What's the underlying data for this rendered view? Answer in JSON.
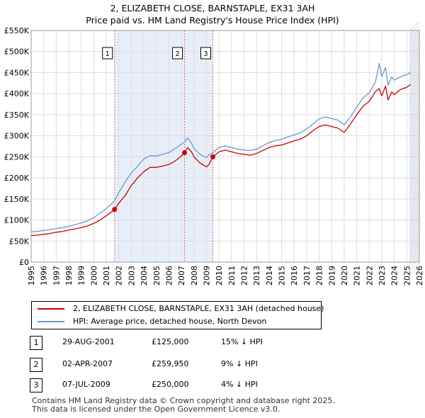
{
  "title": {
    "line1": "2, ELIZABETH CLOSE, BARNSTAPLE, EX31 3AH",
    "line2": "Price paid vs. HM Land Registry's House Price Index (HPI)"
  },
  "colors": {
    "price_line": "#cc0000",
    "hpi_line": "#6699cc",
    "shade": "#e8eef8",
    "grid": "#dddddd",
    "marker_line": "#e06666"
  },
  "legend": [
    {
      "label": "2, ELIZABETH CLOSE, BARNSTAPLE, EX31 3AH (detached house)",
      "color": "#cc0000"
    },
    {
      "label": "HPI: Average price, detached house, North Devon",
      "color": "#6699cc"
    }
  ],
  "sales": [
    {
      "num": "1",
      "date": "29-AUG-2001",
      "price": "£125,000",
      "hpi": "15% ↓ HPI"
    },
    {
      "num": "2",
      "date": "02-APR-2007",
      "price": "£259,950",
      "hpi": "9% ↓ HPI"
    },
    {
      "num": "3",
      "date": "07-JUL-2009",
      "price": "£250,000",
      "hpi": "4% ↓ HPI"
    }
  ],
  "footer": {
    "line1": "Contains HM Land Registry data © Crown copyright and database right 2025.",
    "line2": "This data is licensed under the Open Government Licence v3.0."
  },
  "chart_data": {
    "type": "line",
    "xlim": [
      1995,
      2026
    ],
    "ylim": [
      0,
      550000
    ],
    "yticks": [
      0,
      50000,
      100000,
      150000,
      200000,
      250000,
      300000,
      350000,
      400000,
      450000,
      500000,
      550000
    ],
    "ytick_labels": [
      "£0",
      "£50K",
      "£100K",
      "£150K",
      "£200K",
      "£250K",
      "£300K",
      "£350K",
      "£400K",
      "£450K",
      "£500K",
      "£550K"
    ],
    "xticks": [
      1995,
      1996,
      1997,
      1998,
      1999,
      2000,
      2001,
      2002,
      2003,
      2004,
      2005,
      2006,
      2007,
      2008,
      2009,
      2010,
      2011,
      2012,
      2013,
      2014,
      2015,
      2016,
      2017,
      2018,
      2019,
      2020,
      2021,
      2022,
      2023,
      2024,
      2025,
      2026
    ],
    "grid": true,
    "shaded_ranges": [
      [
        2001.66,
        2009.51
      ],
      [
        2025.2,
        2026
      ]
    ],
    "sale_markers": [
      {
        "label": "1",
        "x": 2001.66,
        "y": 125000
      },
      {
        "label": "2",
        "x": 2007.25,
        "y": 259950
      },
      {
        "label": "3",
        "x": 2009.51,
        "y": 250000
      }
    ],
    "series": [
      {
        "name": "2, ELIZABETH CLOSE, BARNSTAPLE, EX31 3AH (detached house)",
        "x": [
          1995,
          1995.5,
          1996,
          1996.5,
          1997,
          1997.5,
          1998,
          1998.5,
          1999,
          1999.5,
          2000,
          2000.5,
          2001,
          2001.66,
          2002,
          2002.5,
          2003,
          2003.5,
          2004,
          2004.5,
          2005,
          2005.5,
          2006,
          2006.5,
          2007,
          2007.25,
          2007.5,
          2007.8,
          2008,
          2008.5,
          2009,
          2009.2,
          2009.51,
          2010,
          2010.5,
          2011,
          2011.5,
          2012,
          2012.5,
          2013,
          2013.5,
          2014,
          2014.5,
          2015,
          2015.5,
          2016,
          2016.5,
          2017,
          2017.5,
          2018,
          2018.5,
          2019,
          2019.5,
          2020,
          2020.5,
          2021,
          2021.5,
          2022,
          2022.5,
          2022.8,
          2023,
          2023.3,
          2023.5,
          2023.8,
          2024,
          2024.5,
          2025,
          2025.3
        ],
        "y": [
          63000,
          64000,
          66000,
          68000,
          71000,
          73000,
          76000,
          79000,
          82000,
          86000,
          92000,
          100000,
          110000,
          125000,
          140000,
          158000,
          182000,
          200000,
          215000,
          225000,
          225000,
          228000,
          232000,
          240000,
          252000,
          259950,
          272000,
          262000,
          250000,
          235000,
          226000,
          232000,
          250000,
          262000,
          266000,
          262000,
          258000,
          256000,
          254000,
          258000,
          265000,
          272000,
          276000,
          278000,
          283000,
          288000,
          292000,
          300000,
          312000,
          322000,
          326000,
          322000,
          318000,
          308000,
          328000,
          350000,
          370000,
          382000,
          405000,
          412000,
          395000,
          418000,
          385000,
          404000,
          398000,
          410000,
          415000,
          422000
        ]
      },
      {
        "name": "HPI: Average price, detached house, North Devon",
        "x": [
          1995,
          1995.5,
          1996,
          1996.5,
          1997,
          1997.5,
          1998,
          1998.5,
          1999,
          1999.5,
          2000,
          2000.5,
          2001,
          2001.66,
          2002,
          2002.5,
          2003,
          2003.5,
          2004,
          2004.5,
          2005,
          2005.5,
          2006,
          2006.5,
          2007,
          2007.25,
          2007.5,
          2007.8,
          2008,
          2008.5,
          2009,
          2009.2,
          2009.51,
          2010,
          2010.5,
          2011,
          2011.5,
          2012,
          2012.5,
          2013,
          2013.5,
          2014,
          2014.5,
          2015,
          2015.5,
          2016,
          2016.5,
          2017,
          2017.5,
          2018,
          2018.5,
          2019,
          2019.5,
          2020,
          2020.5,
          2021,
          2021.5,
          2022,
          2022.5,
          2022.8,
          2023,
          2023.3,
          2023.5,
          2023.8,
          2024,
          2024.5,
          2025,
          2025.3
        ],
        "y": [
          72000,
          73000,
          75000,
          77000,
          80000,
          82000,
          85000,
          89000,
          93000,
          98000,
          106000,
          116000,
          127000,
          145000,
          165000,
          190000,
          212000,
          228000,
          245000,
          253000,
          252000,
          256000,
          260000,
          270000,
          280000,
          285000,
          295000,
          282000,
          270000,
          256000,
          248000,
          255000,
          260000,
          272000,
          276000,
          272000,
          268000,
          266000,
          265000,
          268000,
          276000,
          284000,
          289000,
          292000,
          297000,
          302000,
          307000,
          316000,
          328000,
          340000,
          345000,
          341000,
          337000,
          326000,
          345000,
          368000,
          390000,
          402000,
          428000,
          472000,
          440000,
          462000,
          420000,
          440000,
          432000,
          440000,
          445000,
          450000
        ]
      }
    ]
  }
}
